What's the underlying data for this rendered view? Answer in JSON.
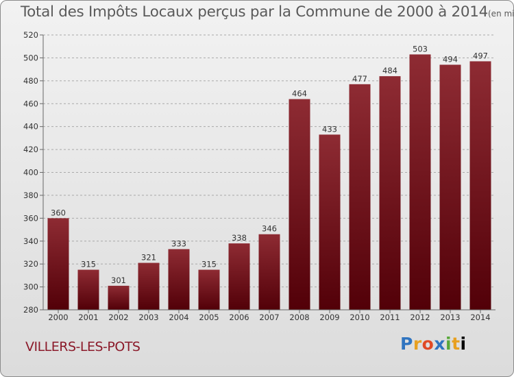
{
  "header": {
    "title": "Total des Impôts Locaux perçus par la Commune de 2000 à 2014",
    "unit": "(en milliers d'€)"
  },
  "commune": "VILLERS-LES-POTS",
  "logo": {
    "letters": [
      "P",
      "r",
      "o",
      "x",
      "i",
      "t",
      "i"
    ],
    "text": "Proxiti"
  },
  "colors": {
    "bar_top": "#8e2b33",
    "bar_bottom": "#520008",
    "text": "#5a5a5a",
    "commune": "#8b1a2a"
  },
  "chart_data": {
    "type": "bar",
    "title": "Total des Impôts Locaux perçus par la Commune de 2000 à 2014",
    "xlabel": "",
    "ylabel": "",
    "categories": [
      "2000",
      "2001",
      "2002",
      "2003",
      "2004",
      "2005",
      "2006",
      "2007",
      "2008",
      "2009",
      "2010",
      "2011",
      "2012",
      "2013",
      "2014"
    ],
    "values": [
      360,
      315,
      301,
      321,
      333,
      315,
      338,
      346,
      464,
      433,
      477,
      484,
      503,
      494,
      497
    ],
    "ylim": [
      280,
      520
    ],
    "yticks": [
      280,
      300,
      320,
      340,
      360,
      380,
      400,
      420,
      440,
      460,
      480,
      500,
      520
    ],
    "grid": true,
    "data_labels": true
  }
}
